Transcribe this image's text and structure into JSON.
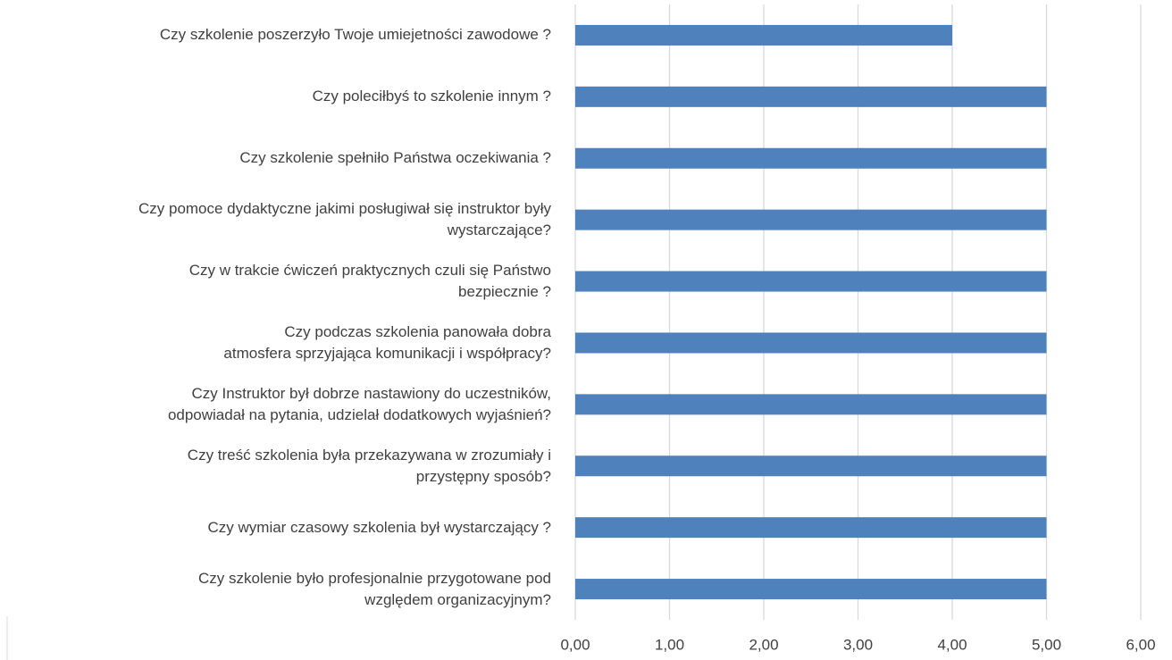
{
  "chart_data": {
    "type": "barh",
    "categories": [
      "Czy szkolenie poszerzyło Twoje umiejetności zawodowe ?",
      "Czy poleciłbyś to szkolenie innym ?",
      "Czy szkolenie spełniło Państwa oczekiwania ?",
      "Czy pomoce dydaktyczne jakimi posługiwał się instruktor były\nwystarczające?",
      "Czy w trakcie ćwiczeń praktycznych czuli się Państwo\nbezpiecznie ?",
      "Czy podczas szkolenia panowała dobra\natmosfera sprzyjająca komunikacji  i współpracy?",
      "Czy Instruktor był dobrze nastawiony do uczestników,\nodpowiadał na pytania, udzielał dodatkowych wyjaśnień?",
      "Czy treść szkolenia była przekazywana w zrozumiały i\nprzystępny sposób?",
      "Czy wymiar czasowy szkolenia był wystarczający ?",
      "Czy szkolenie było profesjonalnie przygotowane pod\nwzględem organizacyjnym?"
    ],
    "values": [
      4,
      5,
      5,
      5,
      5,
      5,
      5,
      5,
      5,
      5
    ],
    "color": "#4f81bd",
    "xlim": [
      0,
      6
    ],
    "xticks": [
      {
        "value": 0,
        "label": "0,00"
      },
      {
        "value": 1,
        "label": "1,00"
      },
      {
        "value": 2,
        "label": "2,00"
      },
      {
        "value": 3,
        "label": "3,00"
      },
      {
        "value": 4,
        "label": "4,00"
      },
      {
        "value": 5,
        "label": "5,00"
      },
      {
        "value": 6,
        "label": "6,00"
      }
    ],
    "grid": true
  }
}
